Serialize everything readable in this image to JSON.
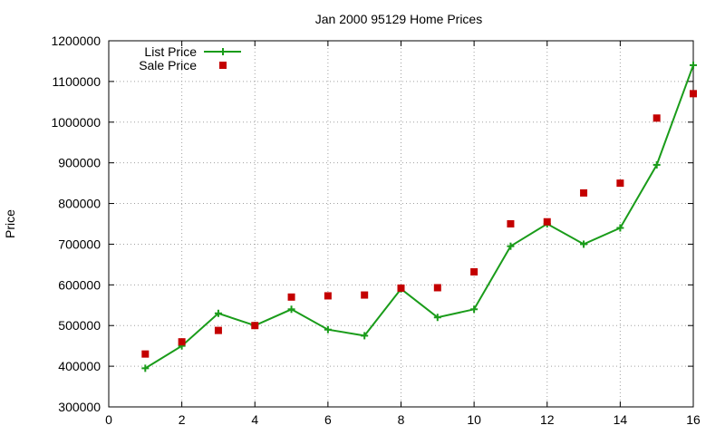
{
  "chart_data": {
    "type": "line",
    "title": "Jan 2000 95129 Home Prices",
    "xlabel": "",
    "ylabel": "Price",
    "xlim": [
      0,
      16
    ],
    "ylim": [
      300000,
      1200000
    ],
    "x_ticks": [
      0,
      2,
      4,
      6,
      8,
      10,
      12,
      14,
      16
    ],
    "y_ticks": [
      300000,
      400000,
      500000,
      600000,
      700000,
      800000,
      900000,
      1000000,
      1100000,
      1200000
    ],
    "grid": true,
    "legend_position": "top-left",
    "series": [
      {
        "name": "List Price",
        "style": "line+plus",
        "color": "#1a9c1a",
        "x": [
          1,
          2,
          3,
          4,
          5,
          6,
          7,
          8,
          9,
          10,
          11,
          12,
          13,
          14,
          15,
          16
        ],
        "values": [
          395000,
          450000,
          530000,
          500000,
          540000,
          490000,
          475000,
          590000,
          520000,
          540000,
          695000,
          750000,
          700000,
          740000,
          895000,
          1140000
        ]
      },
      {
        "name": "Sale Price",
        "style": "square-markers",
        "color": "#c40000",
        "x": [
          1,
          2,
          3,
          4,
          5,
          6,
          7,
          8,
          9,
          10,
          11,
          12,
          13,
          14,
          15,
          16
        ],
        "values": [
          430000,
          460000,
          488000,
          500000,
          570000,
          573000,
          575000,
          592000,
          593000,
          632000,
          750000,
          755000,
          826000,
          850000,
          1010000,
          1070000
        ]
      }
    ]
  }
}
